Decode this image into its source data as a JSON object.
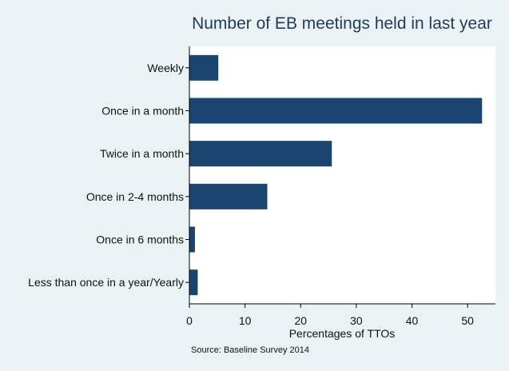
{
  "chart_data": {
    "type": "bar",
    "orientation": "horizontal",
    "title": "Number of EB meetings held in last year",
    "xlabel": "Percentages of TTOs",
    "ylabel": "",
    "note": "Source: Baseline Survey 2014",
    "categories": [
      "Weekly",
      "Once in a month",
      "Twice in a month",
      "Once in 2-4 months",
      "Once in 6 months",
      "Less than once in a year/Yearly"
    ],
    "values": [
      5.2,
      52.6,
      25.6,
      14.0,
      1.0,
      1.5
    ],
    "xlim": [
      0,
      55
    ],
    "xticks": [
      0,
      10,
      20,
      30,
      40,
      50
    ],
    "grid": true,
    "legend": "none",
    "colors": {
      "bar": "#1b4571",
      "plot_background": "#ffffff",
      "page_background": "#eaf2f3",
      "title": "#1f3b5a"
    }
  }
}
